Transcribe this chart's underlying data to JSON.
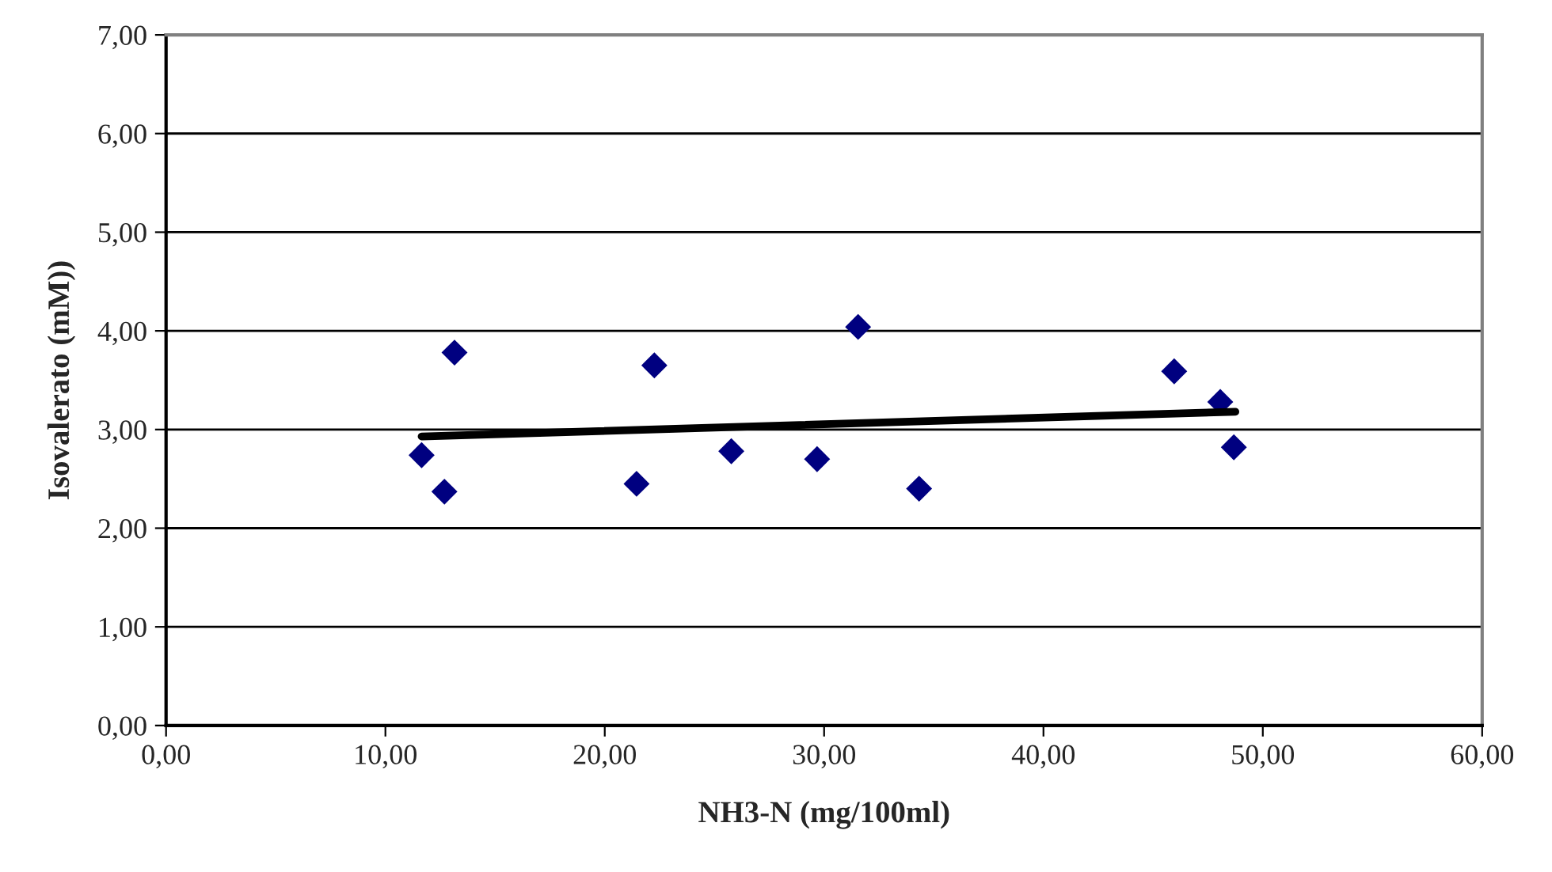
{
  "chart_data": {
    "type": "scatter",
    "xlabel": "NH3-N (mg/100ml)",
    "ylabel": "Isovalerato (mM))",
    "series": [
      {
        "color": "#000080",
        "marker": "diamond",
        "x": [
          11.65,
          12.69,
          13.15,
          21.45,
          22.26,
          25.77,
          29.68,
          31.55,
          34.33,
          45.96,
          48.06,
          48.68
        ],
        "values": [
          2.74,
          2.37,
          3.78,
          2.45,
          3.65,
          2.78,
          2.7,
          4.04,
          2.4,
          3.59,
          3.28,
          2.82
        ]
      },
      {
        "type": "line",
        "color": "#000000",
        "marker": "none",
        "line_style": "solid",
        "x": [
          11.65,
          48.75
        ],
        "values": [
          2.93,
          3.18
        ]
      }
    ],
    "xlim": [
      0,
      60
    ],
    "ylim": [
      0,
      7
    ],
    "xticks": [
      {
        "value": 0,
        "label": "0,00"
      },
      {
        "value": 10,
        "label": "10,00"
      },
      {
        "value": 20,
        "label": "20,00"
      },
      {
        "value": 30,
        "label": "30,00"
      },
      {
        "value": 40,
        "label": "40,00"
      },
      {
        "value": 50,
        "label": "50,00"
      },
      {
        "value": 60,
        "label": "60,00"
      }
    ],
    "yticks": [
      {
        "value": 0,
        "label": "0,00"
      },
      {
        "value": 1,
        "label": "1,00"
      },
      {
        "value": 2,
        "label": "2,00"
      },
      {
        "value": 3,
        "label": "3,00"
      },
      {
        "value": 4,
        "label": "4,00"
      },
      {
        "value": 5,
        "label": "5,00"
      },
      {
        "value": 6,
        "label": "6,00"
      },
      {
        "value": 7,
        "label": "7,00"
      }
    ],
    "grid": "y",
    "legend": false
  }
}
